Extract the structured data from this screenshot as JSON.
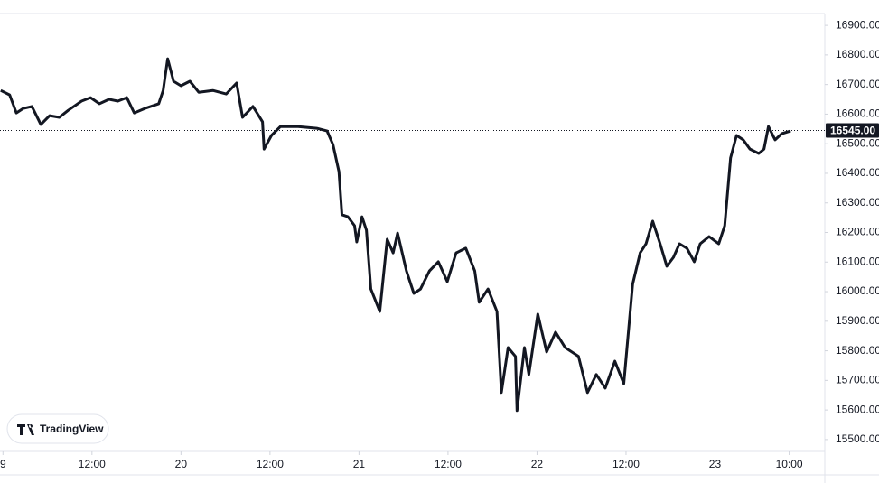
{
  "brand": "TradingView",
  "chart_data": {
    "type": "line",
    "color": "#131722",
    "x": [
      -0.3,
      0.9,
      1.8,
      2.7,
      3.9,
      5.1,
      6.3,
      7.6,
      8.8,
      10.6,
      11.8,
      13.0,
      14.3,
      15.5,
      16.7,
      17.7,
      19.1,
      21.0,
      21.6,
      22.2,
      23.0,
      24.0,
      25.2,
      26.4,
      28.3,
      30.1,
      31.5,
      32.3,
      33.7,
      35.0,
      35.2,
      36.2,
      37.4,
      39.8,
      42.3,
      43.7,
      44.5,
      45.3,
      45.7,
      46.5,
      47.4,
      47.7,
      48.4,
      49.0,
      49.6,
      50.8,
      51.8,
      52.6,
      53.2,
      54.4,
      55.4,
      56.3,
      57.5,
      58.7,
      59.9,
      61.1,
      62.4,
      63.6,
      64.2,
      65.4,
      66.6,
      67.2,
      68.1,
      69.1,
      69.3,
      70.3,
      70.9,
      72.1,
      73.3,
      74.5,
      75.8,
      77.6,
      78.8,
      80.0,
      81.2,
      82.5,
      83.7,
      84.9,
      85.9,
      86.7,
      87.6,
      88.6,
      89.5,
      90.4,
      91.2,
      92.2,
      93.2,
      94.0,
      95.2,
      96.5,
      97.3,
      98.1,
      98.9,
      99.8,
      100.7,
      101.9,
      102.6,
      103.2,
      104.1,
      105.0,
      106.2
    ],
    "values": [
      16680,
      16665,
      16604,
      16619,
      16626,
      16565,
      16595,
      16589,
      16613,
      16644,
      16656,
      16635,
      16650,
      16644,
      16656,
      16604,
      16619,
      16635,
      16680,
      16787,
      16711,
      16696,
      16711,
      16674,
      16680,
      16668,
      16705,
      16589,
      16626,
      16574,
      16482,
      16528,
      16558,
      16558,
      16552,
      16543,
      16497,
      16406,
      16260,
      16253,
      16223,
      16168,
      16253,
      16208,
      16009,
      15933,
      16177,
      16131,
      16198,
      16070,
      15994,
      16009,
      16070,
      16101,
      16034,
      16131,
      16147,
      16070,
      15964,
      16009,
      15933,
      15659,
      15811,
      15781,
      15598,
      15811,
      15720,
      15924,
      15796,
      15863,
      15811,
      15781,
      15659,
      15720,
      15674,
      15765,
      15689,
      16025,
      16131,
      16162,
      16238,
      16162,
      16086,
      16116,
      16162,
      16147,
      16101,
      16162,
      16186,
      16162,
      16223,
      16452,
      16528,
      16513,
      16482,
      16467,
      16482,
      16558,
      16513,
      16534,
      16543
    ],
    "xlim": [
      -0.4,
      110.8
    ],
    "ylim": [
      15460,
      16940
    ],
    "xticks": [
      {
        "value": 0,
        "label": "9"
      },
      {
        "value": 12,
        "label": "12:00"
      },
      {
        "value": 24,
        "label": "20"
      },
      {
        "value": 36,
        "label": "12:00"
      },
      {
        "value": 48,
        "label": "21"
      },
      {
        "value": 60,
        "label": "12:00"
      },
      {
        "value": 72,
        "label": "22"
      },
      {
        "value": 84,
        "label": "12:00"
      },
      {
        "value": 96,
        "label": "23"
      },
      {
        "value": 106,
        "label": "10:00"
      }
    ],
    "yticks": [
      {
        "value": 15500,
        "label": "15500.00"
      },
      {
        "value": 15600,
        "label": "15600.00"
      },
      {
        "value": 15700,
        "label": "15700.00"
      },
      {
        "value": 15800,
        "label": "15800.00"
      },
      {
        "value": 15900,
        "label": "15900.00"
      },
      {
        "value": 16000,
        "label": "16000.00"
      },
      {
        "value": 16100,
        "label": "16100.00"
      },
      {
        "value": 16200,
        "label": "16200.00"
      },
      {
        "value": 16300,
        "label": "16300.00"
      },
      {
        "value": 16400,
        "label": "16400.00"
      },
      {
        "value": 16500,
        "label": "16500.00"
      },
      {
        "value": 16600,
        "label": "16600.00"
      },
      {
        "value": 16700,
        "label": "16700.00"
      },
      {
        "value": 16800,
        "label": "16800.00"
      },
      {
        "value": 16900,
        "label": "16900.00"
      }
    ],
    "last_price": {
      "value": 16545,
      "label": "16545.00"
    }
  }
}
